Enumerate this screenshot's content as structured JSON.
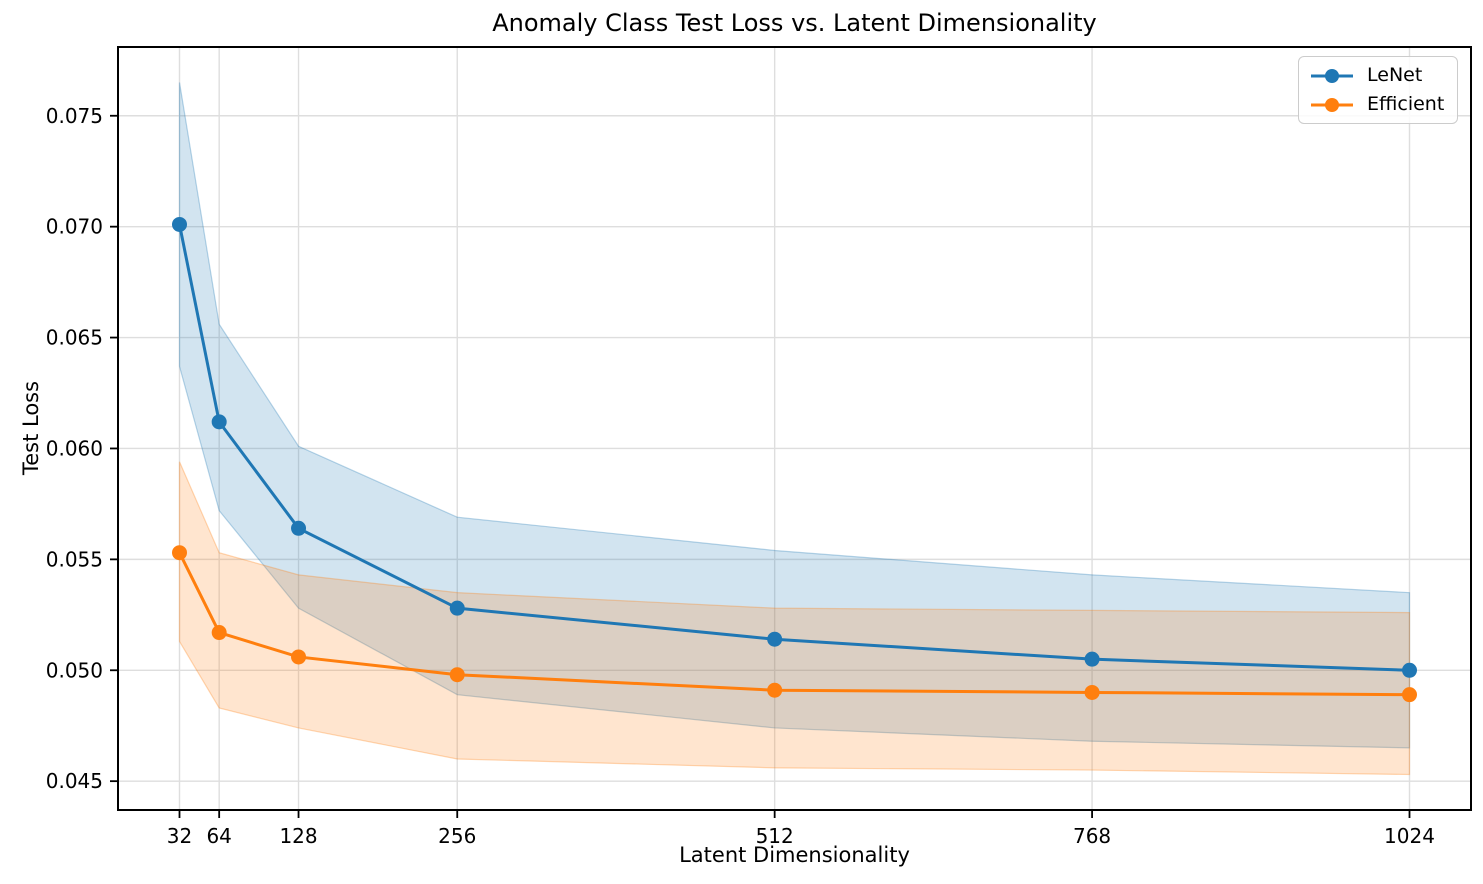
{
  "chart_data": {
    "type": "line",
    "title": "Anomaly Class Test Loss vs. Latent Dimensionality",
    "xlabel": "Latent Dimensionality",
    "ylabel": "Test Loss",
    "x": [
      32,
      64,
      128,
      256,
      512,
      768,
      1024
    ],
    "x_tick_labels": [
      "32",
      "64",
      "128",
      "256",
      "512",
      "768",
      "1024"
    ],
    "y_ticks": [
      0.045,
      0.05,
      0.055,
      0.06,
      0.065,
      0.07,
      0.075
    ],
    "y_tick_labels": [
      "0.045",
      "0.050",
      "0.055",
      "0.060",
      "0.065",
      "0.070",
      "0.075"
    ],
    "xlim": [
      -17.6,
      1073.6
    ],
    "ylim": [
      0.0437,
      0.0781
    ],
    "grid": true,
    "legend_position": "upper right",
    "band_style": "mean ± std shaded region",
    "series": [
      {
        "name": "LeNet",
        "color": "#1f77b4",
        "values": [
          0.0701,
          0.0612,
          0.0564,
          0.0528,
          0.0514,
          0.0505,
          0.05
        ],
        "band_upper": [
          0.0765,
          0.0656,
          0.0601,
          0.0569,
          0.0554,
          0.0543,
          0.0535
        ],
        "band_lower": [
          0.0637,
          0.0572,
          0.0528,
          0.0489,
          0.0474,
          0.0468,
          0.0465
        ]
      },
      {
        "name": "Efficient",
        "color": "#ff7f0e",
        "values": [
          0.0553,
          0.0517,
          0.0506,
          0.0498,
          0.0491,
          0.049,
          0.0489
        ],
        "band_upper": [
          0.0594,
          0.0553,
          0.0543,
          0.0535,
          0.0528,
          0.0527,
          0.0526
        ],
        "band_lower": [
          0.0513,
          0.0483,
          0.0474,
          0.046,
          0.0456,
          0.0455,
          0.0453
        ]
      }
    ]
  }
}
